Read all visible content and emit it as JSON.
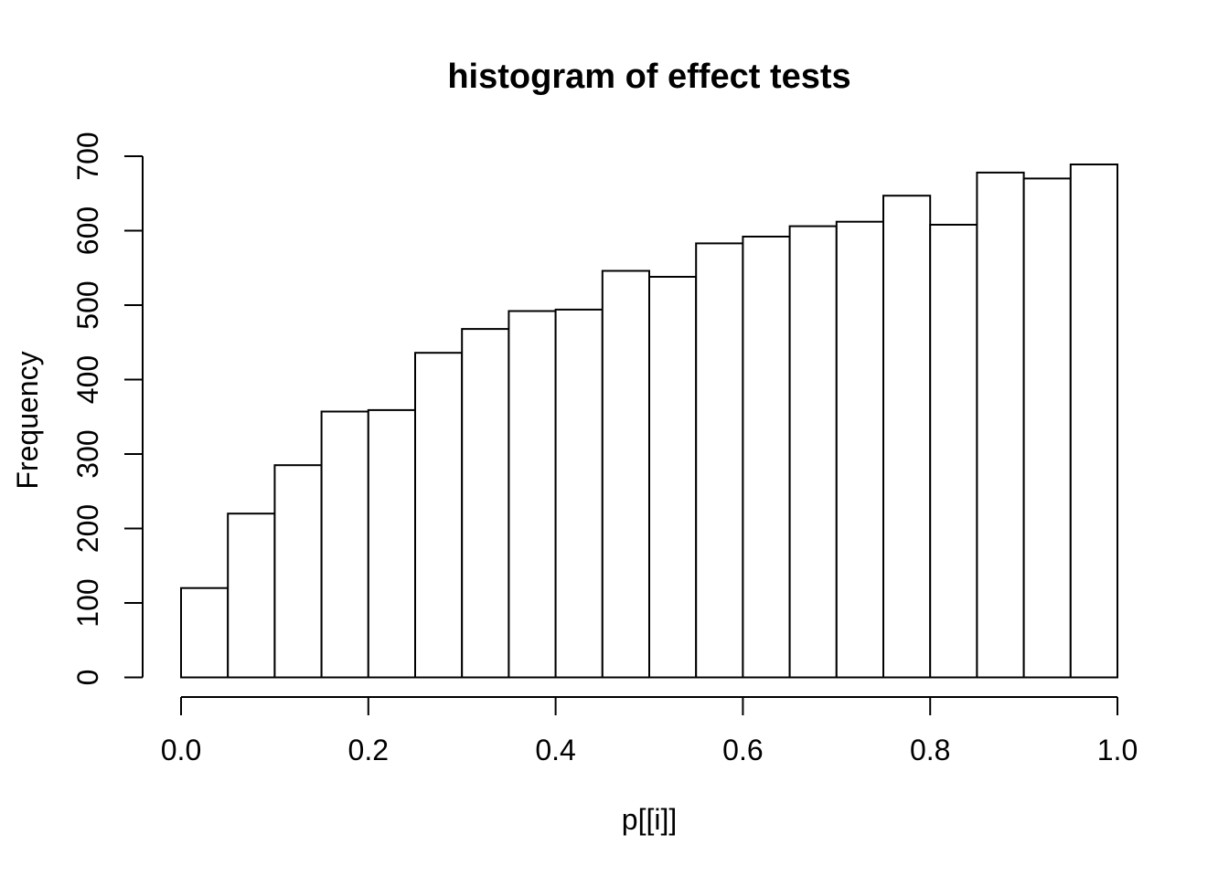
{
  "page": {
    "background": "#ffffff"
  },
  "chart_data": {
    "type": "bar",
    "subtype": "histogram",
    "title": "histogram of effect tests",
    "xlabel": "p[[i]]",
    "ylabel": "Frequency",
    "bin_start": 0.0,
    "bin_width": 0.05,
    "values": [
      120,
      220,
      285,
      357,
      359,
      436,
      468,
      492,
      494,
      546,
      538,
      583,
      592,
      606,
      612,
      647,
      608,
      678,
      670,
      689
    ],
    "xlim": [
      0.0,
      1.0
    ],
    "ylim": [
      0,
      700
    ],
    "x_ticks": [
      {
        "value": 0.0,
        "label": "0.0"
      },
      {
        "value": 0.2,
        "label": "0.2"
      },
      {
        "value": 0.4,
        "label": "0.4"
      },
      {
        "value": 0.6,
        "label": "0.6"
      },
      {
        "value": 0.8,
        "label": "0.8"
      },
      {
        "value": 1.0,
        "label": "1.0"
      }
    ],
    "y_ticks": [
      {
        "value": 0,
        "label": "0"
      },
      {
        "value": 100,
        "label": "100"
      },
      {
        "value": 200,
        "label": "200"
      },
      {
        "value": 300,
        "label": "300"
      },
      {
        "value": 400,
        "label": "400"
      },
      {
        "value": 500,
        "label": "500"
      },
      {
        "value": 600,
        "label": "600"
      },
      {
        "value": 700,
        "label": "700"
      }
    ],
    "grid": false,
    "legend": null,
    "bar_fill": "#ffffff",
    "bar_stroke": "#000000",
    "axis_color": "#000000",
    "text_color": "#000000"
  }
}
